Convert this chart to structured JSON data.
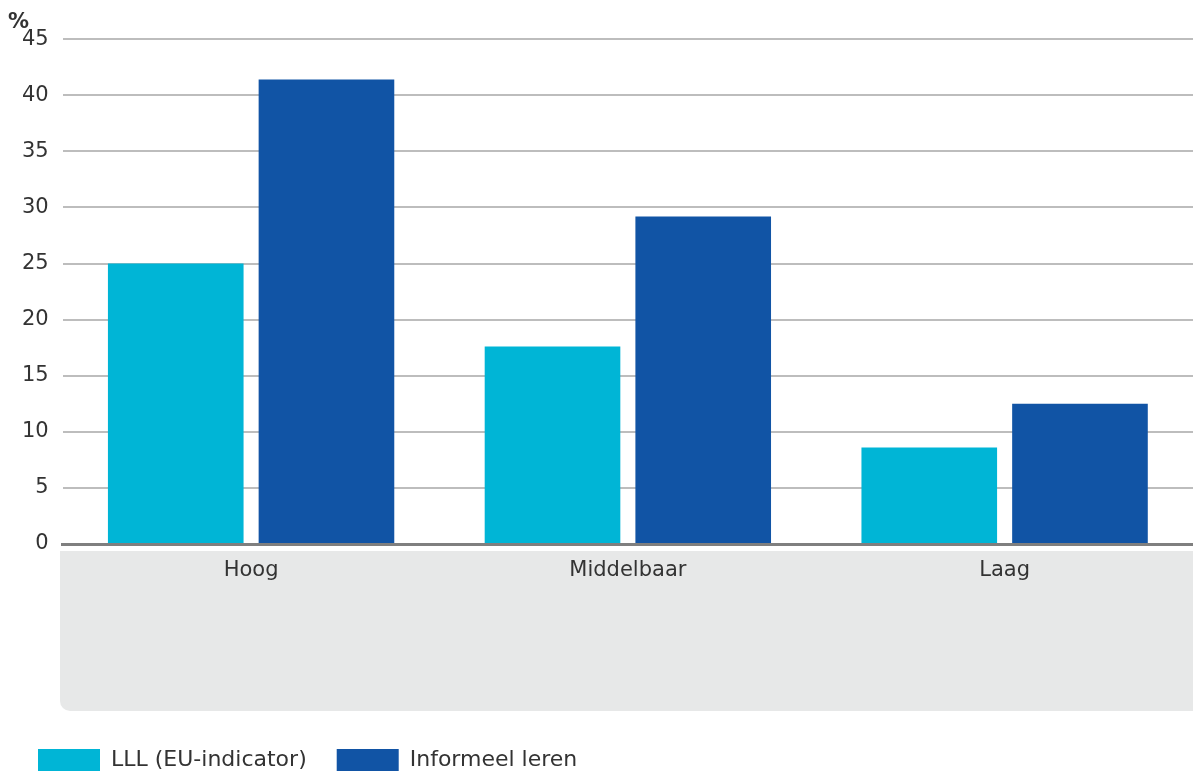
{
  "chart_data": {
    "type": "bar",
    "title": "%",
    "categories": [
      "Hoog",
      "Middelbaar",
      "Laag"
    ],
    "series": [
      {
        "name": "LLL (EU-indicator)",
        "color": "#00b5d6",
        "values": [
          25.0,
          17.6,
          8.6
        ]
      },
      {
        "name": "Informeel leren",
        "color": "#1154a5",
        "values": [
          41.4,
          29.2,
          12.5
        ]
      }
    ],
    "ylim": [
      0,
      45
    ],
    "yticks": [
      0,
      5,
      10,
      15,
      20,
      25,
      30,
      35,
      40,
      45
    ],
    "grid": "y",
    "legend": "bottom left"
  }
}
